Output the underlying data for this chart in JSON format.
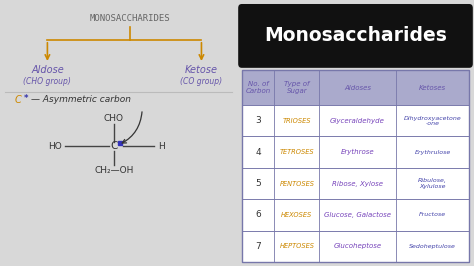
{
  "bg_color": "#d8d8d8",
  "left_bg": "#ffffff",
  "right_bg": "#c8c8c8",
  "title_text": "Monosaccharides",
  "title_box_color": "#111111",
  "title_text_color": "#ffffff",
  "arrow_color": "#cc8800",
  "mono_label_color": "#666666",
  "aldose_color": "#6655aa",
  "ketose_color": "#6655aa",
  "carbon_star_color": "#cc8800",
  "line_color": "#444444",
  "text_color": "#333333",
  "divider_color": "#bbbbbb",
  "table_header_bg": "#aaaacc",
  "table_bg": "#ffffff",
  "table_border": "#7777aa",
  "col_header_color": "#6655aa",
  "type_color": "#cc8800",
  "aldose_val_color": "#7744bb",
  "ketose_val_color": "#4444aa",
  "col_headers": [
    "No. of\nCarbon",
    "Type of\nSugar",
    "Aldoses",
    "Ketoses"
  ],
  "rows": [
    [
      "3",
      "TRIOSES",
      "Glyceraldehyde",
      "Dihydroxyacetone\n-one"
    ],
    [
      "4",
      "TETROSES",
      "Erythrose",
      "Erythrulose"
    ],
    [
      "5",
      "PENTOSES",
      "Ribose, Xylose",
      "Ribulose,\nXylulose"
    ],
    [
      "6",
      "HEXOSES",
      "Glucose, Galactose",
      "Fructose"
    ],
    [
      "7",
      "HEPTOSES",
      "Glucoheptose",
      "Sedoheptulose"
    ]
  ]
}
